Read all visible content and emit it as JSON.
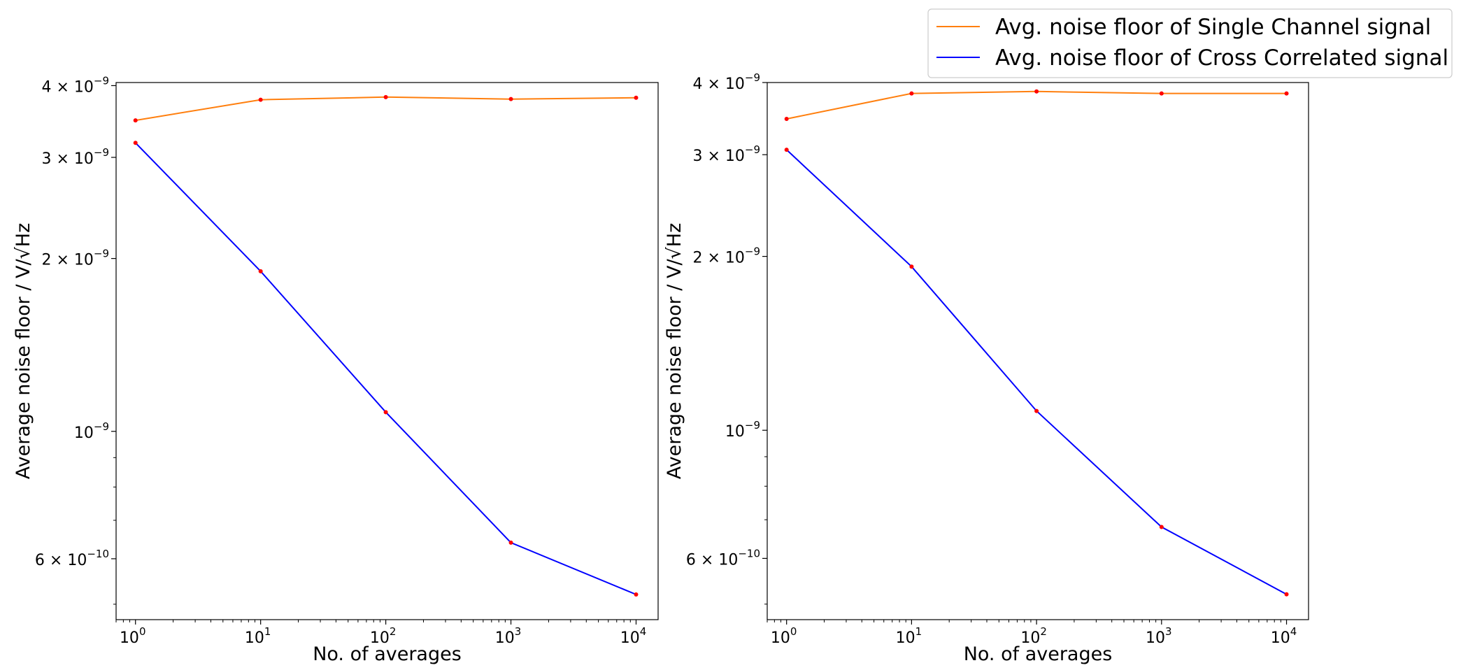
{
  "legend": {
    "entries": [
      {
        "label": "Avg. noise floor of Single Channel signal",
        "color": "#ff7f0e"
      },
      {
        "label": "Avg. noise floor of Cross Correlated signal",
        "color": "#0000ff"
      }
    ],
    "placement": "top-right"
  },
  "chart_data": [
    {
      "type": "line",
      "xscale": "log",
      "yscale": "log",
      "xlabel": "No. of averages",
      "ylabel": "Average noise floor / V/√Hz",
      "xlim": [
        0.7,
        15000
      ],
      "ylim": [
        4.7e-10,
        4.05e-09
      ],
      "x_tick_labels": [
        {
          "base": "10",
          "exp": "0"
        },
        {
          "base": "10",
          "exp": "1"
        },
        {
          "base": "10",
          "exp": "2"
        },
        {
          "base": "10",
          "exp": "3"
        },
        {
          "base": "10",
          "exp": "4"
        }
      ],
      "y_tick_labels": [
        {
          "text": "4 × 10",
          "exp": "−9"
        },
        {
          "text": "3 × 10",
          "exp": "−9"
        },
        {
          "text": "2 × 10",
          "exp": "−9"
        },
        {
          "text": "10",
          "exp": "−9"
        },
        {
          "text": "6 × 10",
          "exp": "−10"
        }
      ],
      "marker_color": "#ff0000",
      "x": [
        1,
        10,
        100,
        1000,
        10000
      ],
      "series": [
        {
          "name": "Avg. noise floor of Single Channel signal",
          "color": "#ff7f0e",
          "values": [
            3.48e-09,
            3.78e-09,
            3.82e-09,
            3.79e-09,
            3.81e-09
          ]
        },
        {
          "name": "Avg. noise floor of Cross Correlated signal",
          "color": "#0000ff",
          "values": [
            3.18e-09,
            1.9e-09,
            1.08e-09,
            6.4e-10,
            5.2e-10
          ]
        }
      ],
      "grid": false
    },
    {
      "type": "line",
      "xscale": "log",
      "yscale": "log",
      "xlabel": "No. of averages",
      "ylabel": "Average noise floor / V/√Hz",
      "xlim": [
        0.7,
        15000
      ],
      "ylim": [
        4.7e-10,
        4e-09
      ],
      "x_tick_labels": [
        {
          "base": "10",
          "exp": "0"
        },
        {
          "base": "10",
          "exp": "1"
        },
        {
          "base": "10",
          "exp": "2"
        },
        {
          "base": "10",
          "exp": "3"
        },
        {
          "base": "10",
          "exp": "4"
        }
      ],
      "y_tick_labels": [
        {
          "text": "4 × 10",
          "exp": "−9"
        },
        {
          "text": "3 × 10",
          "exp": "−9"
        },
        {
          "text": "2 × 10",
          "exp": "−9"
        },
        {
          "text": "10",
          "exp": "−9"
        },
        {
          "text": "6 × 10",
          "exp": "−10"
        }
      ],
      "marker_color": "#ff0000",
      "x": [
        1,
        10,
        100,
        1000,
        10000
      ],
      "series": [
        {
          "name": "Avg. noise floor of Single Channel signal",
          "color": "#ff7f0e",
          "values": [
            3.46e-09,
            3.83e-09,
            3.86e-09,
            3.83e-09,
            3.83e-09
          ]
        },
        {
          "name": "Avg. noise floor of Cross Correlated signal",
          "color": "#0000ff",
          "values": [
            3.06e-09,
            1.92e-09,
            1.08e-09,
            6.8e-10,
            5.2e-10
          ]
        }
      ],
      "grid": false
    }
  ]
}
